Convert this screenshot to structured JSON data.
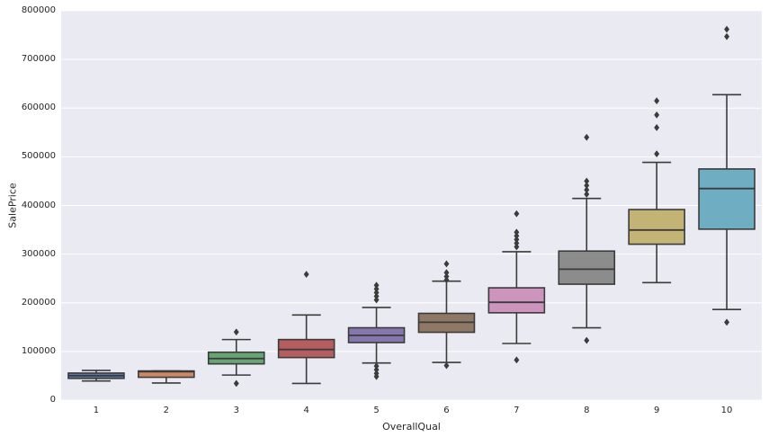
{
  "figure": {
    "background": "#ffffff",
    "plot_background": "#eaeaf2",
    "grid_color": "#ffffff",
    "line_color": "#3b3b3b",
    "text_color": "#262626"
  },
  "chart_data": {
    "type": "boxplot",
    "title": "",
    "xlabel": "OverallQual",
    "ylabel": "SalePrice",
    "ylim": [
      0,
      800000
    ],
    "ytick_step": 100000,
    "ytick_labels": [
      "0",
      "100000",
      "200000",
      "300000",
      "400000",
      "500000",
      "600000",
      "700000",
      "800000"
    ],
    "categories": [
      "1",
      "2",
      "3",
      "4",
      "5",
      "6",
      "7",
      "8",
      "9",
      "10"
    ],
    "grid": true,
    "legend": false,
    "boxes": [
      {
        "category": "1",
        "color": "#5875A4",
        "whisker_low": 39300,
        "q1": 44700,
        "median": 50150,
        "q3": 55600,
        "whisker_high": 61000,
        "outliers": []
      },
      {
        "category": "2",
        "color": "#CC8963",
        "whisker_low": 35300,
        "q1": 47000,
        "median": 58500,
        "q3": 60000,
        "whisker_high": 60000,
        "outliers": []
      },
      {
        "category": "3",
        "color": "#68A474",
        "whisker_low": 51500,
        "q1": 74500,
        "median": 85500,
        "q3": 98500,
        "whisker_high": 124500,
        "outliers": [
          140000,
          34300
        ]
      },
      {
        "category": "4",
        "color": "#B65D60",
        "whisker_low": 34300,
        "q1": 87500,
        "median": 104000,
        "q3": 124500,
        "whisker_high": 175000,
        "outliers": [
          258500
        ]
      },
      {
        "category": "5",
        "color": "#8577AE",
        "whisker_low": 76400,
        "q1": 118300,
        "median": 133000,
        "q3": 148700,
        "whisker_high": 190500,
        "outliers": [
          236000,
          228500,
          221000,
          213500,
          206000,
          70000,
          62500,
          55000,
          48500
        ]
      },
      {
        "category": "6",
        "color": "#8F7865",
        "whisker_low": 77500,
        "q1": 139400,
        "median": 160000,
        "q3": 178300,
        "whisker_high": 244400,
        "outliers": [
          280000,
          262000,
          254000,
          247000,
          71000
        ]
      },
      {
        "category": "7",
        "color": "#CD94BE",
        "whisker_low": 116400,
        "q1": 179500,
        "median": 201000,
        "q3": 230800,
        "whisker_high": 305000,
        "outliers": [
          383000,
          345000,
          337500,
          330000,
          322500,
          315000,
          82500
        ]
      },
      {
        "category": "8",
        "color": "#8C8C8C",
        "whisker_low": 148700,
        "q1": 238200,
        "median": 269000,
        "q3": 306300,
        "whisker_high": 414400,
        "outliers": [
          540000,
          450000,
          441000,
          432000,
          423000,
          122700
        ]
      },
      {
        "category": "9",
        "color": "#C3B475",
        "whisker_low": 241400,
        "q1": 320400,
        "median": 349500,
        "q3": 391600,
        "whisker_high": 488500,
        "outliers": [
          615000,
          586000,
          560000,
          506000
        ]
      },
      {
        "category": "10",
        "color": "#6FAEC2",
        "whisker_low": 186300,
        "q1": 351300,
        "median": 434800,
        "q3": 475000,
        "whisker_high": 627600,
        "outliers": [
          762000,
          747000,
          160000
        ]
      }
    ]
  }
}
